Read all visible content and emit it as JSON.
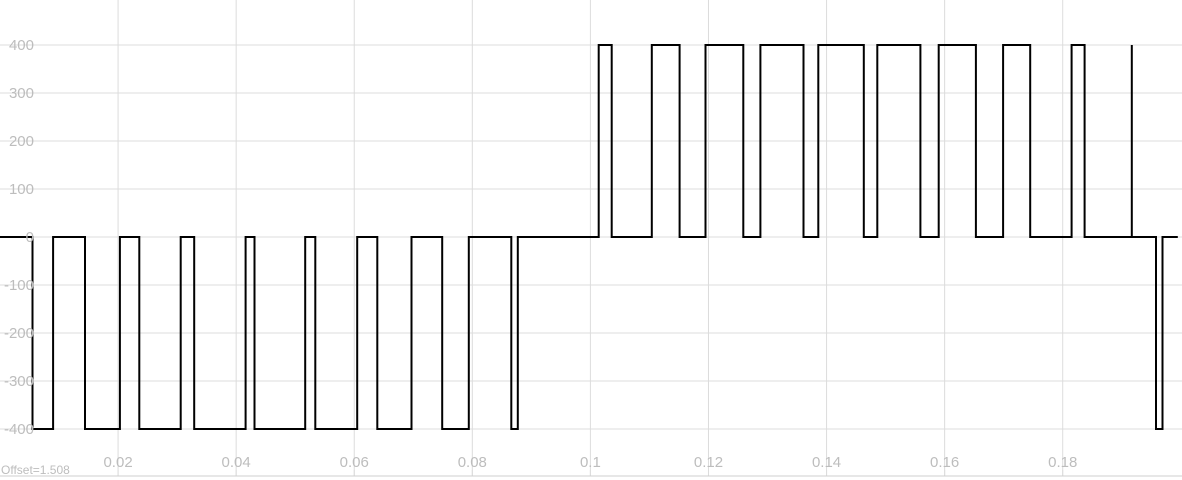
{
  "offset_label": "Offset=1.508",
  "chart_data": {
    "type": "line",
    "title": "",
    "xlabel": "",
    "ylabel": "",
    "xlim": [
      0.0,
      0.1995
    ],
    "ylim": [
      -430,
      470
    ],
    "grid": true,
    "line_color": "#000000",
    "grid_color": "#dcdcdc",
    "tick_label_color": "#bdbdbd",
    "x_ticks": [
      {
        "value": 0.02,
        "label": "0.02"
      },
      {
        "value": 0.04,
        "label": "0.04"
      },
      {
        "value": 0.06,
        "label": "0.06"
      },
      {
        "value": 0.08,
        "label": "0.08"
      },
      {
        "value": 0.1,
        "label": "0.1"
      },
      {
        "value": 0.12,
        "label": "0.12"
      },
      {
        "value": 0.14,
        "label": "0.14"
      },
      {
        "value": 0.16,
        "label": "0.16"
      },
      {
        "value": 0.18,
        "label": "0.18"
      }
    ],
    "y_ticks": [
      {
        "value": 400,
        "label": "400"
      },
      {
        "value": 300,
        "label": "300"
      },
      {
        "value": 200,
        "label": "200"
      },
      {
        "value": 100,
        "label": "100"
      },
      {
        "value": 0,
        "label": "0"
      },
      {
        "value": -100,
        "label": "-100"
      },
      {
        "value": -200,
        "label": "-200"
      },
      {
        "value": -300,
        "label": "-300"
      },
      {
        "value": -400,
        "label": "-400"
      }
    ],
    "series": [
      {
        "style": "step",
        "points": [
          [
            0.0,
            0
          ],
          [
            0.0055,
            0
          ],
          [
            0.0055,
            -400
          ],
          [
            0.009,
            -400
          ],
          [
            0.009,
            0
          ],
          [
            0.0144,
            0
          ],
          [
            0.0144,
            -400
          ],
          [
            0.0203,
            -400
          ],
          [
            0.0203,
            0
          ],
          [
            0.0236,
            0
          ],
          [
            0.0236,
            -400
          ],
          [
            0.0306,
            -400
          ],
          [
            0.0306,
            0
          ],
          [
            0.0329,
            0
          ],
          [
            0.0329,
            -400
          ],
          [
            0.0416,
            -400
          ],
          [
            0.0416,
            0
          ],
          [
            0.0431,
            0
          ],
          [
            0.0431,
            -400
          ],
          [
            0.0517,
            -400
          ],
          [
            0.0517,
            0
          ],
          [
            0.0534,
            0
          ],
          [
            0.0534,
            -400
          ],
          [
            0.0605,
            -400
          ],
          [
            0.0605,
            0
          ],
          [
            0.0639,
            0
          ],
          [
            0.0639,
            -400
          ],
          [
            0.0697,
            -400
          ],
          [
            0.0697,
            0
          ],
          [
            0.0749,
            0
          ],
          [
            0.0749,
            -400
          ],
          [
            0.0794,
            -400
          ],
          [
            0.0794,
            0
          ],
          [
            0.0866,
            0
          ],
          [
            0.0866,
            -400
          ],
          [
            0.0877,
            -400
          ],
          [
            0.0877,
            0
          ],
          [
            0.1014,
            0
          ],
          [
            0.1014,
            400
          ],
          [
            0.1036,
            400
          ],
          [
            0.1036,
            0
          ],
          [
            0.1104,
            0
          ],
          [
            0.1104,
            400
          ],
          [
            0.1151,
            400
          ],
          [
            0.1151,
            0
          ],
          [
            0.1195,
            0
          ],
          [
            0.1195,
            400
          ],
          [
            0.1259,
            400
          ],
          [
            0.1259,
            0
          ],
          [
            0.1288,
            0
          ],
          [
            0.1288,
            400
          ],
          [
            0.1361,
            400
          ],
          [
            0.1361,
            0
          ],
          [
            0.1386,
            0
          ],
          [
            0.1386,
            400
          ],
          [
            0.1463,
            400
          ],
          [
            0.1463,
            0
          ],
          [
            0.1486,
            0
          ],
          [
            0.1486,
            400
          ],
          [
            0.1559,
            400
          ],
          [
            0.1559,
            0
          ],
          [
            0.159,
            0
          ],
          [
            0.159,
            400
          ],
          [
            0.1653,
            400
          ],
          [
            0.1653,
            0
          ],
          [
            0.1699,
            0
          ],
          [
            0.1699,
            400
          ],
          [
            0.1745,
            400
          ],
          [
            0.1745,
            0
          ],
          [
            0.1815,
            0
          ],
          [
            0.1815,
            400
          ],
          [
            0.1837,
            400
          ],
          [
            0.1837,
            0
          ],
          [
            0.1917,
            0
          ],
          [
            0.1917,
            400
          ],
          [
            0.1917,
            0
          ],
          [
            0.1958,
            0
          ],
          [
            0.1958,
            -400
          ],
          [
            0.1969,
            -400
          ],
          [
            0.1969,
            0
          ],
          [
            0.1995,
            0
          ]
        ]
      }
    ]
  }
}
